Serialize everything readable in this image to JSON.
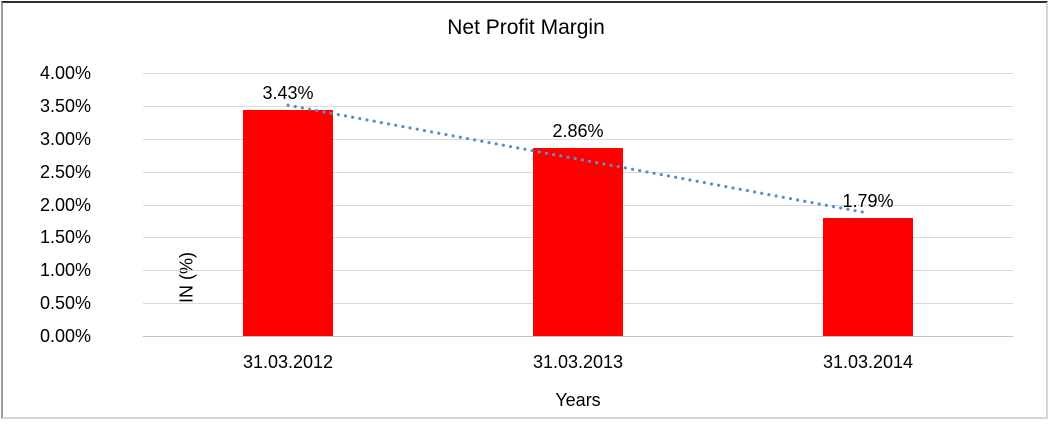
{
  "chart_data": {
    "type": "bar",
    "title": "Net Profit Margin",
    "categories": [
      "31.03.2012",
      "31.03.2013",
      "31.03.2014"
    ],
    "values": [
      3.43,
      2.86,
      1.79
    ],
    "data_labels": [
      "3.43%",
      "2.86%",
      "1.79%"
    ],
    "xlabel": "Years",
    "ylabel": "IN (%)",
    "ylim": [
      0,
      4
    ],
    "ytick_step": 0.5,
    "yticks": [
      "4.00%",
      "3.50%",
      "3.00%",
      "2.50%",
      "2.00%",
      "1.50%",
      "1.00%",
      "0.50%",
      "0.00%"
    ],
    "grid": true,
    "legend": "none",
    "bar_color": "#ff0000",
    "gridline_color": "#d9d9d9",
    "trendline": {
      "type": "linear",
      "style": "dotted",
      "color": "#5b8fcb",
      "start_value": 3.51,
      "end_value": 1.87
    }
  }
}
